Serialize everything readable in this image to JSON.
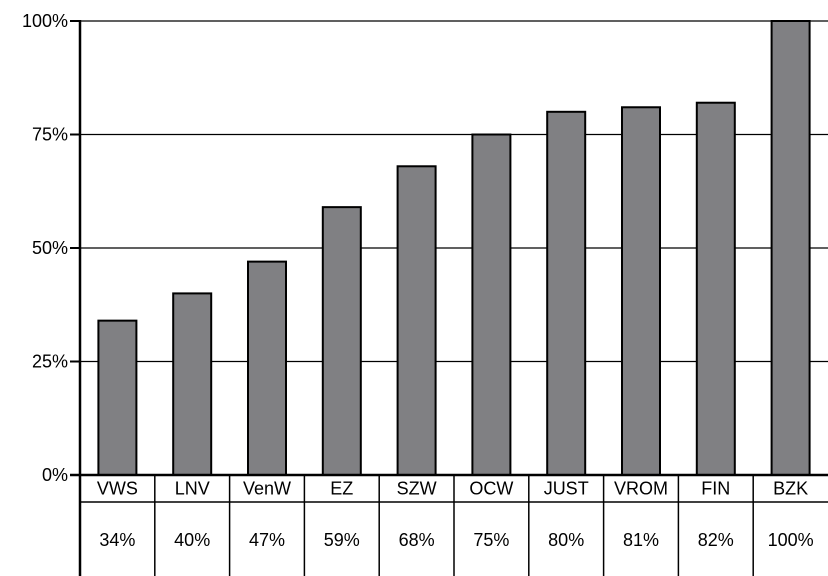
{
  "chart_data": {
    "type": "bar",
    "categories": [
      "VWS",
      "LNV",
      "VenW",
      "EZ",
      "SZW",
      "OCW",
      "JUST",
      "VROM",
      "FIN",
      "BZK"
    ],
    "values": [
      34,
      40,
      47,
      59,
      68,
      75,
      80,
      81,
      82,
      100
    ],
    "value_labels": [
      "34%",
      "40%",
      "47%",
      "59%",
      "68%",
      "75%",
      "80%",
      "81%",
      "82%",
      "100%"
    ],
    "y_ticks": [
      {
        "value": 0,
        "label": "0%"
      },
      {
        "value": 25,
        "label": "25%"
      },
      {
        "value": 50,
        "label": "50%"
      },
      {
        "value": 75,
        "label": "75%"
      },
      {
        "value": 100,
        "label": "100%"
      }
    ],
    "ylim": [
      0,
      100
    ],
    "grid": true,
    "legend": "none",
    "title": "",
    "xlabel": "",
    "ylabel": "",
    "colors": {
      "bar_fill": "#808083",
      "bar_stroke": "#000000",
      "grid": "#000000",
      "axis": "#000000"
    }
  }
}
